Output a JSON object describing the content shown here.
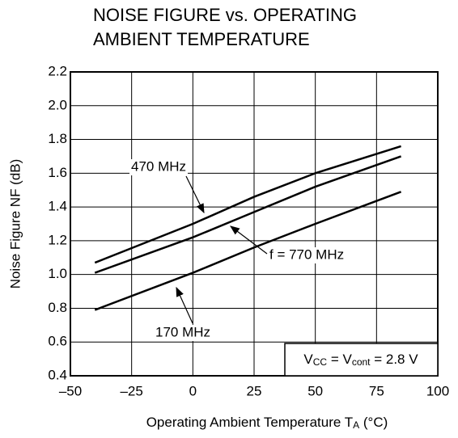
{
  "chart_data": {
    "type": "line",
    "title": [
      "NOISE FIGURE vs. OPERATING",
      "AMBIENT TEMPERATURE"
    ],
    "xlabel": [
      "Operating Ambient Temperature  T",
      "A",
      " (°C)"
    ],
    "ylabel": "Noise Figure  NF (dB)",
    "x": [
      -40,
      0,
      25,
      50,
      85
    ],
    "series": [
      {
        "name": "470 MHz",
        "color": "#000000",
        "values": [
          1.07,
          1.3,
          1.46,
          1.6,
          1.76
        ]
      },
      {
        "name": "f = 770 MHz",
        "color": "#000000",
        "values": [
          1.01,
          1.22,
          1.37,
          1.52,
          1.7
        ]
      },
      {
        "name": "170 MHz",
        "color": "#000000",
        "values": [
          0.79,
          1.01,
          1.16,
          1.3,
          1.49
        ]
      }
    ],
    "note": [
      "V",
      "CC",
      " = V",
      "cont",
      " = 2.8 V"
    ],
    "xlim": [
      -50,
      100
    ],
    "xticks": [
      {
        "value": -50,
        "label": "–50"
      },
      {
        "value": -25,
        "label": "–25"
      },
      0,
      25,
      50,
      75,
      100
    ],
    "ylim": [
      0.4,
      2.2
    ],
    "yticks": [
      0.4,
      0.6,
      0.8,
      {
        "value": 1.0,
        "label": "1.0"
      },
      1.2,
      1.4,
      1.6,
      1.8,
      {
        "value": 2.0,
        "label": "2.0"
      },
      2.2
    ],
    "grid": true
  }
}
